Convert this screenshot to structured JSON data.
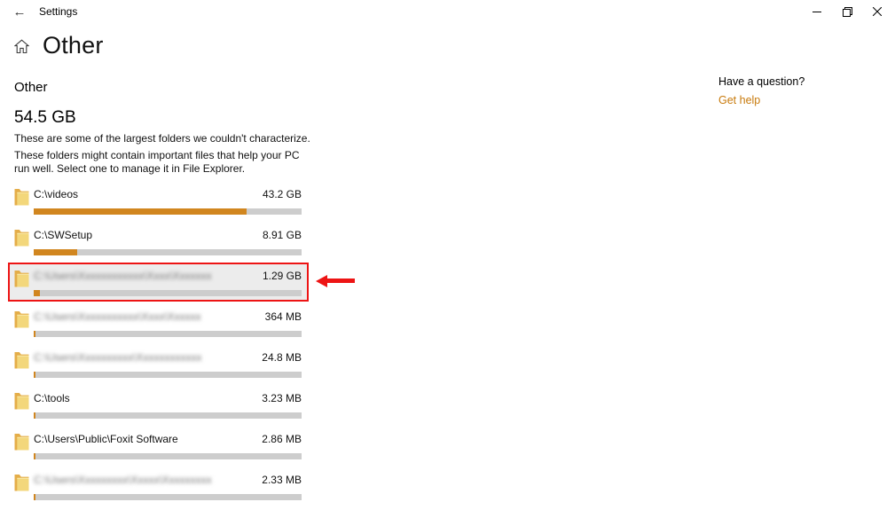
{
  "window": {
    "title": "Settings",
    "back_icon": "←",
    "controls": {
      "minimize": "minimize",
      "restore": "restore",
      "close": "close"
    }
  },
  "page": {
    "title": "Other"
  },
  "help": {
    "question": "Have a question?",
    "link_label": "Get help"
  },
  "storage": {
    "section_title": "Other",
    "total_size": "54.5 GB",
    "description_1": "These are some of the largest folders we couldn't characterize.",
    "description_2": "These folders might contain important files that help your PC run well. Select one to manage it in File Explorer.",
    "folders": [
      {
        "path": "C:\\videos",
        "size": "43.2 GB",
        "bar_percent": 79.5,
        "blurred": false,
        "highlighted": false
      },
      {
        "path": "C:\\SWSetup",
        "size": "8.91 GB",
        "bar_percent": 16.3,
        "blurred": false,
        "highlighted": false
      },
      {
        "path": "C:\\Users\\Xxxxxxxxxxxx\\Xxxx\\Xxxxxxx",
        "size": "1.29 GB",
        "bar_percent": 2.4,
        "blurred": true,
        "highlighted": true
      },
      {
        "path": "C:\\Users\\Xxxxxxxxxxx\\Xxxx\\Xxxxxx",
        "size": "364 MB",
        "bar_percent": 0.8,
        "blurred": true,
        "highlighted": false
      },
      {
        "path": "C:\\Users\\Xxxxxxxxxx\\Xxxxxxxxxxxx",
        "size": "24.8 MB",
        "bar_percent": 0.6,
        "blurred": true,
        "highlighted": false
      },
      {
        "path": "C:\\tools",
        "size": "3.23 MB",
        "bar_percent": 0.6,
        "blurred": false,
        "highlighted": false
      },
      {
        "path": "C:\\Users\\Public\\Foxit Software",
        "size": "2.86 MB",
        "bar_percent": 0.6,
        "blurred": false,
        "highlighted": false
      },
      {
        "path": "C:\\Users\\Xxxxxxxxx\\Xxxxx\\Xxxxxxxxx",
        "size": "2.33 MB",
        "bar_percent": 0.6,
        "blurred": true,
        "highlighted": false
      }
    ]
  },
  "annotation": {
    "type": "red-box-and-arrow",
    "color": "#ed1414"
  },
  "colors": {
    "bar_fill": "#d1861f",
    "bar_track": "#cdcdcd",
    "link": "#c87a0c",
    "highlight_bg": "#ececec"
  }
}
